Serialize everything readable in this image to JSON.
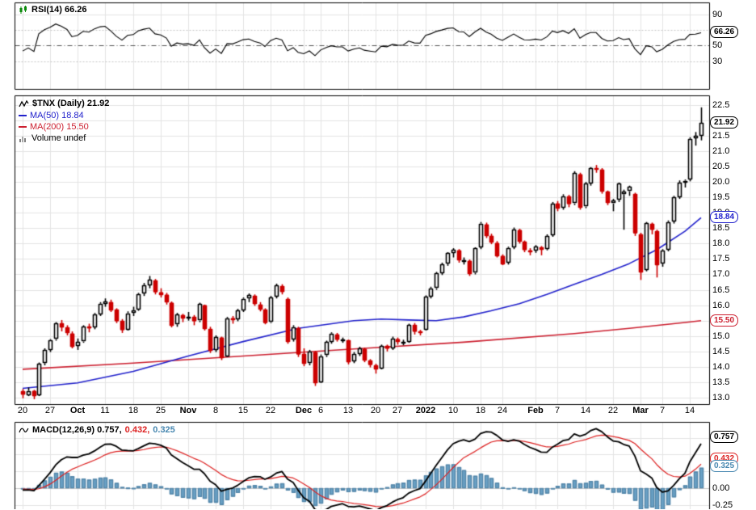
{
  "app": {
    "title": "$TNX Daily chart with RSI(14) and MACD(12,26,9)"
  },
  "colors": {
    "background": "#ffffff",
    "grid": "#e4e4e4",
    "grid_dark": "#c6c6c6",
    "border": "#000000",
    "up_candle_fill": "#ffffff",
    "up_candle_stroke": "#000000",
    "down_candle": "#cc0000",
    "ma50": "#2222cc",
    "ma200": "#cc2030",
    "rsi_line": "#000000",
    "rsi_mid_line": "#555555",
    "macd_line": "#000000",
    "signal_line": "#dd2222",
    "hist_fill": "#6ba3c6",
    "hist_stroke": "#5588ab",
    "hist_text": "#4787b0"
  },
  "rsi_panel": {
    "label": "RSI(14) 66.26",
    "badge": {
      "text": "66.26",
      "value": 66.26,
      "color": "#000000"
    },
    "ticks": [
      {
        "value": 90,
        "label": "90"
      },
      {
        "value": 50,
        "label": "50"
      },
      {
        "value": 30,
        "label": "30"
      }
    ],
    "bands": {
      "upper": 70,
      "mid": 50,
      "lower": 30
    }
  },
  "price_panel": {
    "title": "$TNX (Daily) 21.92",
    "ma50_label": "MA(50) 18.84",
    "ma200_label": "MA(200) 15.50",
    "volume_label": "Volume undef",
    "badges": [
      {
        "text": "21.92",
        "value": 21.92,
        "color": "#000000"
      },
      {
        "text": "18.84",
        "value": 18.84,
        "color": "#2222cc"
      },
      {
        "text": "15.50",
        "value": 15.5,
        "color": "#cc2030"
      }
    ]
  },
  "macd_panel": {
    "label_main": "MACD(12,26,9) 0.757,",
    "label_signal": "0.432,",
    "label_hist": "0.325",
    "badges": [
      {
        "text": "0.757",
        "value": 0.757,
        "color": "#000000"
      },
      {
        "text": "0.432",
        "value": 0.432,
        "color": "#dd2222"
      },
      {
        "text": "0.325",
        "value": 0.325,
        "color": "#4787b0"
      }
    ],
    "ticks": [
      {
        "value": 0,
        "label": "0.00"
      },
      {
        "value": -0.25,
        "label": "-0.25"
      }
    ]
  },
  "chart_data": {
    "type": "candlestick",
    "symbol": "$TNX",
    "timeframe": "Daily",
    "last_close": 21.92,
    "y_axis": {
      "min": 13.0,
      "max": 22.5,
      "step": 0.5,
      "hidden_labels": [
        15.5,
        22.0
      ]
    },
    "x_labels": [
      {
        "day": 0,
        "text": "20",
        "bold": false
      },
      {
        "day": 5,
        "text": "27",
        "bold": false
      },
      {
        "day": 10,
        "text": "Oct",
        "bold": true
      },
      {
        "day": 15,
        "text": "11",
        "bold": false
      },
      {
        "day": 20,
        "text": "18",
        "bold": false
      },
      {
        "day": 25,
        "text": "25",
        "bold": false
      },
      {
        "day": 30,
        "text": "Nov",
        "bold": true
      },
      {
        "day": 35,
        "text": "8",
        "bold": false
      },
      {
        "day": 40,
        "text": "15",
        "bold": false
      },
      {
        "day": 45,
        "text": "22",
        "bold": false
      },
      {
        "day": 51,
        "text": "Dec",
        "bold": true
      },
      {
        "day": 54,
        "text": "6",
        "bold": false
      },
      {
        "day": 59,
        "text": "13",
        "bold": false
      },
      {
        "day": 64,
        "text": "20",
        "bold": false
      },
      {
        "day": 68,
        "text": "27",
        "bold": false
      },
      {
        "day": 73,
        "text": "2022",
        "bold": true
      },
      {
        "day": 78,
        "text": "10",
        "bold": false
      },
      {
        "day": 83,
        "text": "18",
        "bold": false
      },
      {
        "day": 87,
        "text": "24",
        "bold": false
      },
      {
        "day": 93,
        "text": "Feb",
        "bold": true
      },
      {
        "day": 97,
        "text": "7",
        "bold": false
      },
      {
        "day": 102,
        "text": "14",
        "bold": false
      },
      {
        "day": 107,
        "text": "22",
        "bold": false
      },
      {
        "day": 112,
        "text": "Mar",
        "bold": true
      },
      {
        "day": 116,
        "text": "7",
        "bold": false
      },
      {
        "day": 121,
        "text": "14",
        "bold": false
      }
    ],
    "overlays": {
      "ma50": {
        "period": 50,
        "last": 18.84,
        "days": [
          0,
          10,
          20,
          30,
          40,
          50,
          60,
          65,
          70,
          75,
          80,
          85,
          90,
          95,
          100,
          105,
          110,
          115,
          120,
          123
        ],
        "values": [
          13.3,
          13.48,
          13.85,
          14.35,
          14.82,
          15.25,
          15.5,
          15.55,
          15.52,
          15.5,
          15.62,
          15.82,
          16.05,
          16.35,
          16.68,
          17.0,
          17.35,
          17.8,
          18.4,
          18.84
        ]
      },
      "ma200": {
        "period": 200,
        "last": 15.5,
        "days": [
          0,
          20,
          40,
          60,
          80,
          100,
          110,
          120,
          123
        ],
        "values": [
          13.92,
          14.12,
          14.35,
          14.58,
          14.8,
          15.08,
          15.25,
          15.44,
          15.5
        ]
      }
    },
    "indicators": {
      "rsi": {
        "period": 14,
        "last": 66.26
      },
      "macd": {
        "fast": 12,
        "slow": 26,
        "signal": 9,
        "last_values": [
          0.757,
          0.432,
          0.325
        ]
      },
      "volume": "undef"
    },
    "pre_closes": [
      13.55,
      13.45,
      13.38,
      13.3,
      13.2,
      13.02,
      12.92,
      13.02,
      13.18,
      13.3,
      12.92,
      12.85,
      13.02,
      13.12,
      13.28,
      13.2,
      13.02,
      12.94,
      13.1,
      13.28,
      13.36,
      13.22,
      13.3,
      13.65,
      13.58,
      13.42,
      13.3,
      13.22,
      13.12,
      13.04
    ],
    "ohlc": [
      [
        13.2,
        13.28,
        12.98,
        13.1
      ],
      [
        13.1,
        13.33,
        13.05,
        13.22
      ],
      [
        13.22,
        13.25,
        12.95,
        13.05
      ],
      [
        13.08,
        14.14,
        13.05,
        14.1
      ],
      [
        14.12,
        14.6,
        14.05,
        14.55
      ],
      [
        14.55,
        14.9,
        14.48,
        14.87
      ],
      [
        14.9,
        15.45,
        14.85,
        15.4
      ],
      [
        15.4,
        15.52,
        15.15,
        15.28
      ],
      [
        15.28,
        15.35,
        15.02,
        15.1
      ],
      [
        15.08,
        15.15,
        14.6,
        14.65
      ],
      [
        14.68,
        14.92,
        14.55,
        14.8
      ],
      [
        14.82,
        15.35,
        14.78,
        15.3
      ],
      [
        15.3,
        15.4,
        15.12,
        15.25
      ],
      [
        15.28,
        15.75,
        15.22,
        15.71
      ],
      [
        15.72,
        16.1,
        15.65,
        16.05
      ],
      [
        16.05,
        16.22,
        15.95,
        16.12
      ],
      [
        16.1,
        16.18,
        15.78,
        15.85
      ],
      [
        15.85,
        15.9,
        15.42,
        15.48
      ],
      [
        15.48,
        15.55,
        15.1,
        15.19
      ],
      [
        15.22,
        15.8,
        15.18,
        15.74
      ],
      [
        15.75,
        15.95,
        15.65,
        15.84
      ],
      [
        15.86,
        16.4,
        15.82,
        16.36
      ],
      [
        16.38,
        16.72,
        16.3,
        16.65
      ],
      [
        16.65,
        16.95,
        16.55,
        16.83
      ],
      [
        16.8,
        16.85,
        16.35,
        16.42
      ],
      [
        16.42,
        16.55,
        16.25,
        16.34
      ],
      [
        16.34,
        16.4,
        16.02,
        16.1
      ],
      [
        16.08,
        16.12,
        15.28,
        15.35
      ],
      [
        15.38,
        15.75,
        15.3,
        15.7
      ],
      [
        15.68,
        15.72,
        15.45,
        15.58
      ],
      [
        15.6,
        15.78,
        15.5,
        15.62
      ],
      [
        15.62,
        15.68,
        15.35,
        15.48
      ],
      [
        15.5,
        16.08,
        15.45,
        16.03
      ],
      [
        16.0,
        16.02,
        15.18,
        15.25
      ],
      [
        15.22,
        15.3,
        14.45,
        14.52
      ],
      [
        14.55,
        15.02,
        14.48,
        14.96
      ],
      [
        14.95,
        14.98,
        14.22,
        14.3
      ],
      [
        14.35,
        15.62,
        14.32,
        15.58
      ],
      [
        15.58,
        15.65,
        15.4,
        15.55
      ],
      [
        15.55,
        15.88,
        15.48,
        15.83
      ],
      [
        15.85,
        16.25,
        15.78,
        16.21
      ],
      [
        16.22,
        16.38,
        16.1,
        16.32
      ],
      [
        16.3,
        16.35,
        15.98,
        16.04
      ],
      [
        16.02,
        16.1,
        15.8,
        15.86
      ],
      [
        15.85,
        15.9,
        15.38,
        15.42
      ],
      [
        15.45,
        16.3,
        15.42,
        16.25
      ],
      [
        16.28,
        16.7,
        16.22,
        16.64
      ],
      [
        16.62,
        16.68,
        16.35,
        16.43
      ],
      [
        16.2,
        16.25,
        14.75,
        14.82
      ],
      [
        14.9,
        15.35,
        14.82,
        15.29
      ],
      [
        15.25,
        15.3,
        14.32,
        14.4
      ],
      [
        14.42,
        14.6,
        14.02,
        14.1
      ],
      [
        14.12,
        14.55,
        14.05,
        14.5
      ],
      [
        14.48,
        14.52,
        13.38,
        13.48
      ],
      [
        13.52,
        14.4,
        13.48,
        14.35
      ],
      [
        14.38,
        14.85,
        14.32,
        14.8
      ],
      [
        14.82,
        15.12,
        14.75,
        15.08
      ],
      [
        15.05,
        15.1,
        14.82,
        14.88
      ],
      [
        14.88,
        14.95,
        14.78,
        14.89
      ],
      [
        14.85,
        14.88,
        14.08,
        14.15
      ],
      [
        14.18,
        14.48,
        14.12,
        14.42
      ],
      [
        14.42,
        14.65,
        14.35,
        14.6
      ],
      [
        14.58,
        14.62,
        14.15,
        14.21
      ],
      [
        14.2,
        14.25,
        13.98,
        14.06
      ],
      [
        14.05,
        14.1,
        13.78,
        13.92
      ],
      [
        13.95,
        14.72,
        13.92,
        14.68
      ],
      [
        14.68,
        14.72,
        14.5,
        14.59
      ],
      [
        14.6,
        14.98,
        14.55,
        14.92
      ],
      [
        14.9,
        14.95,
        14.72,
        14.81
      ],
      [
        14.8,
        14.88,
        14.7,
        14.8
      ],
      [
        14.82,
        15.4,
        14.78,
        15.36
      ],
      [
        15.35,
        15.42,
        15.05,
        15.14
      ],
      [
        15.14,
        15.2,
        15.02,
        15.12
      ],
      [
        15.2,
        16.32,
        15.18,
        16.28
      ],
      [
        16.3,
        16.6,
        16.22,
        16.55
      ],
      [
        16.55,
        17.08,
        16.5,
        17.03
      ],
      [
        17.05,
        17.38,
        16.98,
        17.33
      ],
      [
        17.35,
        17.72,
        17.28,
        17.69
      ],
      [
        17.7,
        17.85,
        17.55,
        17.8
      ],
      [
        17.78,
        17.82,
        17.38,
        17.46
      ],
      [
        17.45,
        17.55,
        17.32,
        17.45
      ],
      [
        17.44,
        17.48,
        16.95,
        17.02
      ],
      [
        17.05,
        17.88,
        17.0,
        17.84
      ],
      [
        17.88,
        18.7,
        17.82,
        18.65
      ],
      [
        18.62,
        18.68,
        18.18,
        18.26
      ],
      [
        18.25,
        18.32,
        17.98,
        18.05
      ],
      [
        18.02,
        18.08,
        17.55,
        17.61
      ],
      [
        17.6,
        17.65,
        17.3,
        17.35
      ],
      [
        17.38,
        17.9,
        17.32,
        17.86
      ],
      [
        17.88,
        18.52,
        17.82,
        18.46
      ],
      [
        18.44,
        18.48,
        18.0,
        18.07
      ],
      [
        18.05,
        18.1,
        17.72,
        17.79
      ],
      [
        17.78,
        17.85,
        17.62,
        17.77
      ],
      [
        17.78,
        17.95,
        17.7,
        17.9
      ],
      [
        17.88,
        17.92,
        17.62,
        17.81
      ],
      [
        17.82,
        18.3,
        17.78,
        18.25
      ],
      [
        18.28,
        19.35,
        18.22,
        19.3
      ],
      [
        19.3,
        19.38,
        19.05,
        19.15
      ],
      [
        19.16,
        19.6,
        19.1,
        19.54
      ],
      [
        19.52,
        19.58,
        19.18,
        19.28
      ],
      [
        19.3,
        20.35,
        19.25,
        20.28
      ],
      [
        20.25,
        20.3,
        19.1,
        19.18
      ],
      [
        19.2,
        20.0,
        19.15,
        19.94
      ],
      [
        19.95,
        20.48,
        19.88,
        20.45
      ],
      [
        20.45,
        20.55,
        20.3,
        20.44
      ],
      [
        20.4,
        20.45,
        19.62,
        19.7
      ],
      [
        19.68,
        19.72,
        19.25,
        19.32
      ],
      [
        19.3,
        19.45,
        19.05,
        19.39
      ],
      [
        19.42,
        19.98,
        19.35,
        19.94
      ],
      [
        19.6,
        19.75,
        18.45,
        19.69
      ],
      [
        19.7,
        19.88,
        19.55,
        19.84
      ],
      [
        19.6,
        19.65,
        18.25,
        18.33
      ],
      [
        18.3,
        18.35,
        16.82,
        17.08
      ],
      [
        17.15,
        18.7,
        17.1,
        18.66
      ],
      [
        18.64,
        18.68,
        18.3,
        18.45
      ],
      [
        18.4,
        18.45,
        16.9,
        17.3
      ],
      [
        17.35,
        17.82,
        17.25,
        17.78
      ],
      [
        17.8,
        18.75,
        17.75,
        18.7
      ],
      [
        18.72,
        19.55,
        18.65,
        19.51
      ],
      [
        19.52,
        20.05,
        19.45,
        19.98
      ],
      [
        19.98,
        20.08,
        19.82,
        20.04
      ],
      [
        20.08,
        21.45,
        20.02,
        21.4
      ],
      [
        21.42,
        21.62,
        21.18,
        21.49
      ],
      [
        21.5,
        22.42,
        21.35,
        21.92
      ]
    ]
  }
}
